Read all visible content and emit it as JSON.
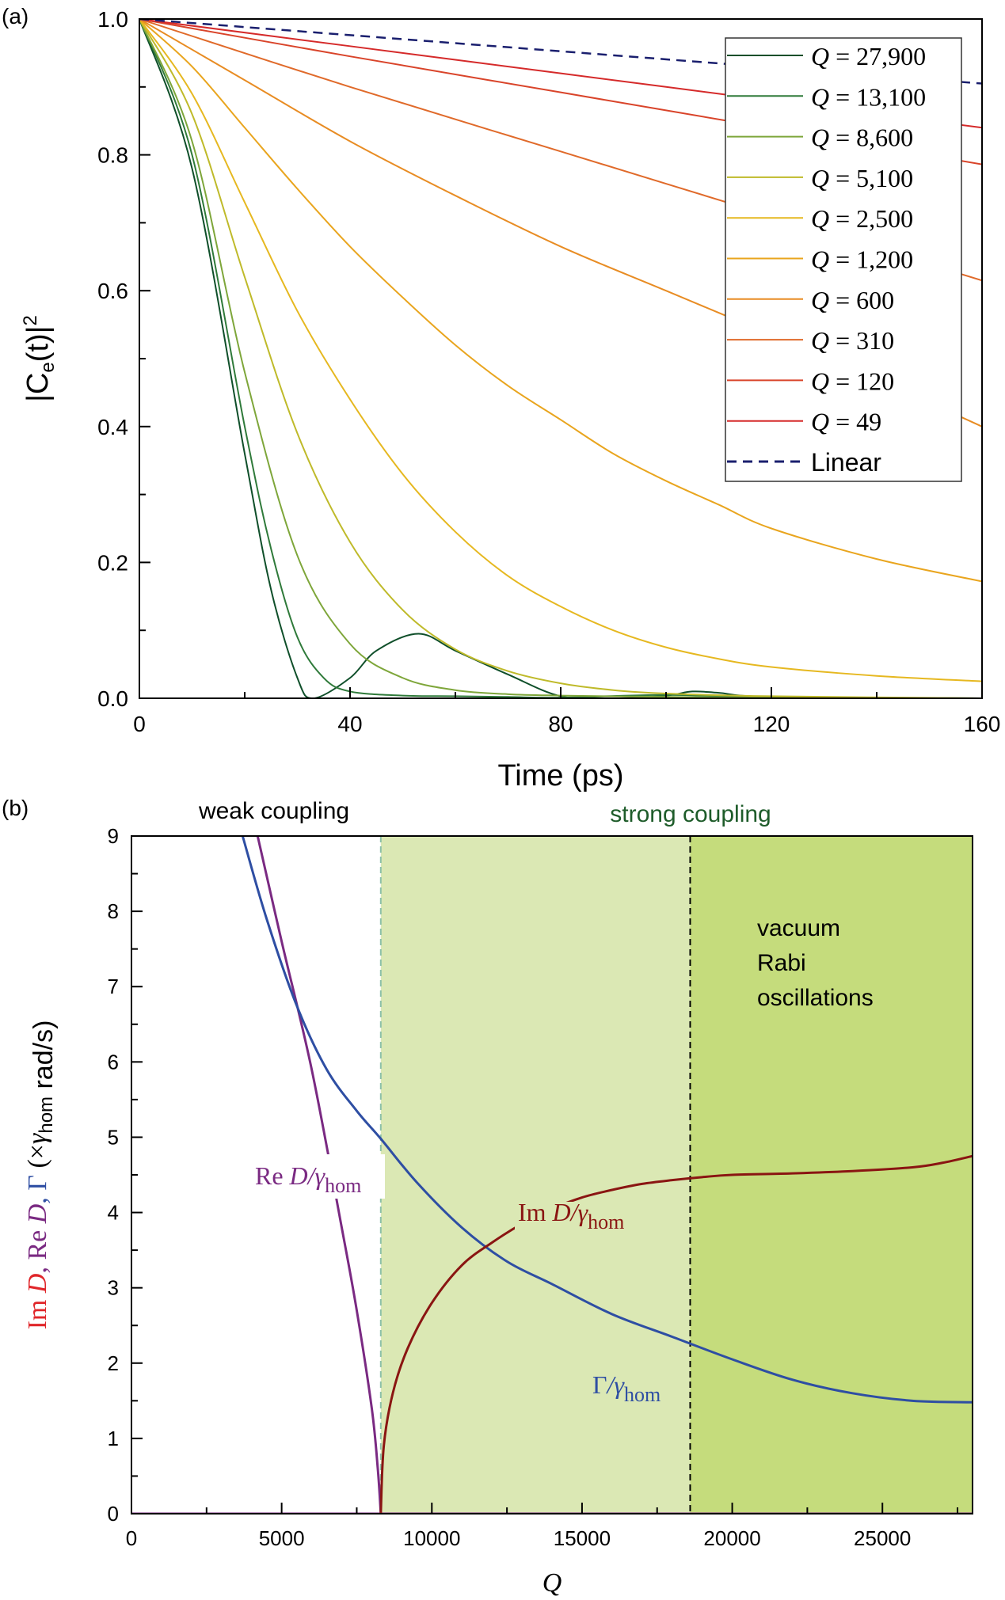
{
  "chart_data": [
    {
      "type": "line",
      "panel_label": "(a)",
      "xlabel": "Time (ps)",
      "ylabel": "|C",
      "ylabel_sub": "e",
      "ylabel_mid": "(t)|",
      "ylabel_sup": "2",
      "xlim": [
        0,
        160
      ],
      "ylim": [
        0,
        1.0
      ],
      "xticks": [
        "0",
        "40",
        "80",
        "120",
        "160"
      ],
      "yticks": [
        "0.0",
        "0.2",
        "0.4",
        "0.6",
        "0.8",
        "1.0"
      ],
      "grid": false,
      "legend_position": "top-right",
      "legend_prefix": "Q",
      "legend_eq": " = ",
      "series": [
        {
          "name": "27,900",
          "color": "#0f4f2a",
          "x": [
            0,
            10,
            20,
            25,
            30,
            33,
            40,
            45,
            53,
            60,
            70,
            80,
            90,
            100,
            105,
            110,
            120,
            160
          ],
          "y": [
            1.0,
            0.78,
            0.36,
            0.16,
            0.03,
            0.0,
            0.03,
            0.07,
            0.095,
            0.07,
            0.035,
            0.003,
            0.0,
            0.004,
            0.01,
            0.008,
            0.002,
            0.0
          ]
        },
        {
          "name": "13,100",
          "color": "#2f7a3a",
          "x": [
            0,
            10,
            20,
            25,
            30,
            35,
            40,
            50,
            60,
            70,
            80,
            100,
            120,
            160
          ],
          "y": [
            1.0,
            0.8,
            0.4,
            0.22,
            0.09,
            0.03,
            0.01,
            0.004,
            0.003,
            0.002,
            0.001,
            0.005,
            0.001,
            0.0
          ]
        },
        {
          "name": "8,600",
          "color": "#7ea63a",
          "x": [
            0,
            10,
            20,
            30,
            40,
            50,
            60,
            70,
            80,
            100,
            120,
            160
          ],
          "y": [
            1.0,
            0.82,
            0.48,
            0.21,
            0.08,
            0.03,
            0.012,
            0.006,
            0.004,
            0.002,
            0.001,
            0.0
          ]
        },
        {
          "name": "5,100",
          "color": "#bfba2a",
          "x": [
            0,
            10,
            20,
            30,
            40,
            50,
            60,
            70,
            80,
            90,
            100,
            120,
            160
          ],
          "y": [
            1.0,
            0.86,
            0.62,
            0.39,
            0.23,
            0.13,
            0.072,
            0.04,
            0.022,
            0.012,
            0.007,
            0.003,
            0.0
          ]
        },
        {
          "name": "2,500",
          "color": "#e6b820",
          "x": [
            0,
            10,
            20,
            30,
            40,
            50,
            60,
            70,
            80,
            90,
            100,
            110,
            120,
            140,
            160
          ],
          "y": [
            1.0,
            0.89,
            0.73,
            0.57,
            0.44,
            0.33,
            0.245,
            0.18,
            0.135,
            0.1,
            0.075,
            0.058,
            0.046,
            0.033,
            0.025
          ]
        },
        {
          "name": "1,200",
          "color": "#e9a51e",
          "x": [
            0,
            10,
            20,
            30,
            40,
            50,
            60,
            70,
            80,
            90,
            100,
            110,
            120,
            140,
            160
          ],
          "y": [
            1.0,
            0.93,
            0.84,
            0.75,
            0.665,
            0.59,
            0.52,
            0.46,
            0.41,
            0.36,
            0.32,
            0.285,
            0.25,
            0.205,
            0.172
          ]
        },
        {
          "name": "600",
          "color": "#e88c23",
          "x": [
            0,
            20,
            40,
            60,
            80,
            100,
            120,
            140,
            160
          ],
          "y": [
            1.0,
            0.91,
            0.82,
            0.74,
            0.665,
            0.6,
            0.535,
            0.47,
            0.4
          ]
        },
        {
          "name": "310",
          "color": "#e06a2a",
          "x": [
            0,
            40,
            80,
            120,
            160
          ],
          "y": [
            1.0,
            0.9,
            0.805,
            0.71,
            0.615
          ]
        },
        {
          "name": "120",
          "color": "#d9442a",
          "x": [
            0,
            40,
            80,
            120,
            160
          ],
          "y": [
            1.0,
            0.945,
            0.892,
            0.839,
            0.786
          ]
        },
        {
          "name": "49",
          "color": "#d52a2a",
          "x": [
            0,
            40,
            80,
            120,
            160
          ],
          "y": [
            1.0,
            0.96,
            0.92,
            0.88,
            0.84
          ]
        },
        {
          "name": "Linear",
          "color": "#1a1f6e",
          "dash": true,
          "x": [
            0,
            160
          ],
          "y": [
            1.0,
            0.905
          ]
        }
      ]
    },
    {
      "type": "line",
      "panel_label": "(b)",
      "xlabel": "Q",
      "ylabel_parts": [
        {
          "text": "Im ",
          "color": "#e0262a",
          "serif": true
        },
        {
          "text": "D",
          "color": "#e0262a",
          "serif": true,
          "italic": true
        },
        {
          "text": ", Re ",
          "color": "#7a2a82",
          "serif": true
        },
        {
          "text": "D",
          "color": "#7a2a82",
          "serif": true,
          "italic": true
        },
        {
          "text": ", ",
          "color": "#2e4ea3",
          "serif": true
        },
        {
          "text": "Γ",
          "color": "#2e4ea3",
          "serif": true
        },
        {
          "text": " (×",
          "color": "#000000",
          "serif": true
        },
        {
          "text": "γ",
          "color": "#000000",
          "serif": true,
          "italic": true
        },
        {
          "text": "hom",
          "color": "#000000",
          "serif": false,
          "sub": true
        },
        {
          "text": " rad/s)",
          "color": "#000000",
          "serif": false
        }
      ],
      "xlim": [
        0,
        28000
      ],
      "ylim": [
        0,
        9
      ],
      "xticks": [
        "0",
        "5000",
        "10000",
        "15000",
        "20000",
        "25000"
      ],
      "yticks": [
        "0",
        "1",
        "2",
        "3",
        "4",
        "5",
        "6",
        "7",
        "8",
        "9"
      ],
      "grid": false,
      "regions": [
        {
          "label": "weak coupling",
          "from": 0,
          "to": 8300,
          "color": "#ffffff"
        },
        {
          "label": "strong coupling",
          "from": 8300,
          "to": 18600,
          "color": "#dbe8b4"
        },
        {
          "label": "vacuum Rabi oscillations",
          "label_lines": [
            "vacuum",
            "Rabi",
            "oscillations"
          ],
          "from": 18600,
          "to": 28000,
          "color": "#c5dc7c"
        }
      ],
      "region_label_colors": {
        "weak": "#000000",
        "strong": "#1e5c2a",
        "rabi": "#000000"
      },
      "boundaries": [
        {
          "x": 8300,
          "color": "#8cc0a8",
          "dash": true
        },
        {
          "x": 18600,
          "color": "#000000",
          "dash": true
        }
      ],
      "series": [
        {
          "name": "Re D/γhom",
          "label_main": "Re ",
          "label_italic": "D",
          "label_slash": "/γ",
          "label_sub": "hom",
          "color": "#7a2a82",
          "x": [
            0,
            4000,
            4200,
            5000,
            6000,
            7000,
            7500,
            8000,
            8200,
            8300,
            28000
          ],
          "y": [
            0,
            0,
            9.0,
            7.6,
            5.9,
            3.8,
            2.7,
            1.4,
            0.6,
            0.0,
            0.0
          ]
        },
        {
          "name": "Γ/γhom",
          "label_main": "Γ",
          "label_slash": "/γ",
          "label_sub": "hom",
          "color": "#2e4ea3",
          "x": [
            3700,
            4500,
            5500,
            6500,
            7500,
            8300,
            9500,
            11000,
            12500,
            14000,
            16000,
            18000,
            20000,
            22000,
            24000,
            26000,
            28000
          ],
          "y": [
            9.0,
            7.9,
            6.75,
            5.9,
            5.35,
            4.98,
            4.4,
            3.8,
            3.35,
            3.05,
            2.65,
            2.35,
            2.05,
            1.78,
            1.6,
            1.5,
            1.48
          ]
        },
        {
          "name": "Im D/γhom",
          "label_main": "Im ",
          "label_italic": "D",
          "label_slash": "/γ",
          "label_sub": "hom",
          "color": "#8a1512",
          "x": [
            8300,
            8400,
            8700,
            9200,
            10000,
            11000,
            12000,
            13000,
            14000,
            15000,
            16000,
            17000,
            18000,
            19000,
            20000,
            22000,
            24000,
            26000,
            27000,
            28000
          ],
          "y": [
            0.0,
            0.9,
            1.6,
            2.2,
            2.8,
            3.3,
            3.6,
            3.85,
            4.05,
            4.2,
            4.3,
            4.38,
            4.43,
            4.47,
            4.5,
            4.52,
            4.55,
            4.6,
            4.66,
            4.75
          ]
        }
      ]
    }
  ]
}
